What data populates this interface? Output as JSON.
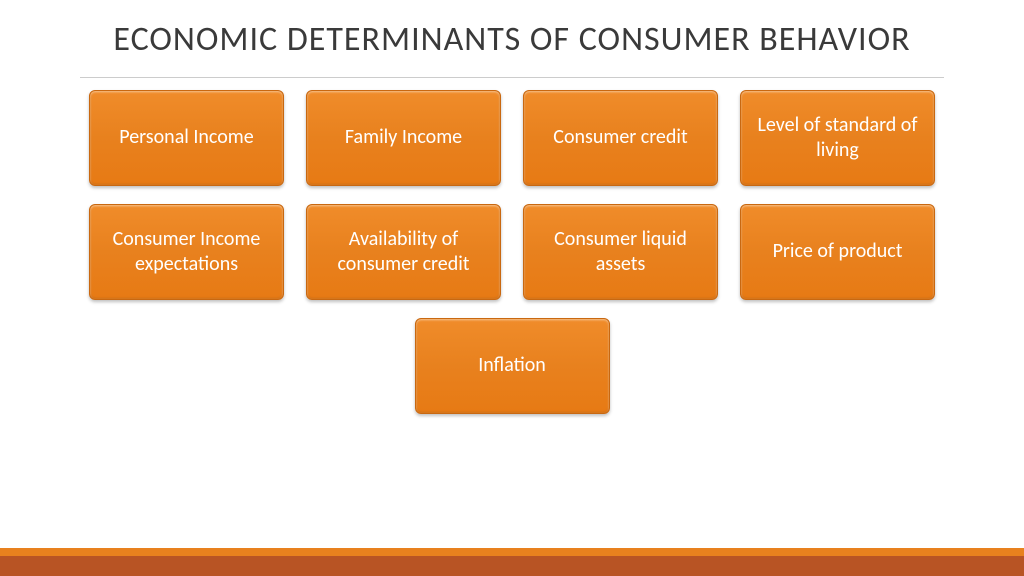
{
  "slide": {
    "title": "ECONOMIC DETERMINANTS OF CONSUMER BEHAVIOR",
    "title_color": "#3a3a3a",
    "title_fontsize": 34,
    "underline_color": "#cccccc",
    "background_color": "#ffffff"
  },
  "boxes": {
    "row1": [
      {
        "label": "Personal Income"
      },
      {
        "label": "Family Income"
      },
      {
        "label": "Consumer credit"
      },
      {
        "label": "Level of standard of living"
      }
    ],
    "row2": [
      {
        "label": "Consumer Income expectations"
      },
      {
        "label": "Availability of consumer credit"
      },
      {
        "label": "Consumer liquid assets"
      },
      {
        "label": "Price of product"
      }
    ],
    "row3": [
      {
        "label": "Inflation"
      }
    ]
  },
  "box_style": {
    "fill_gradient_top": "#f08c2a",
    "fill_gradient_mid": "#e8811e",
    "fill_gradient_bottom": "#e77a14",
    "border_color": "#c96810",
    "border_radius": 6,
    "text_color": "#ffffff",
    "text_fontsize": 20,
    "width": 195,
    "height": 96,
    "gap_horizontal": 22,
    "gap_vertical": 18
  },
  "footer": {
    "top_bar_color": "#e8811e",
    "top_bar_height": 8,
    "bottom_bar_color": "#b85424",
    "bottom_bar_height": 20
  }
}
